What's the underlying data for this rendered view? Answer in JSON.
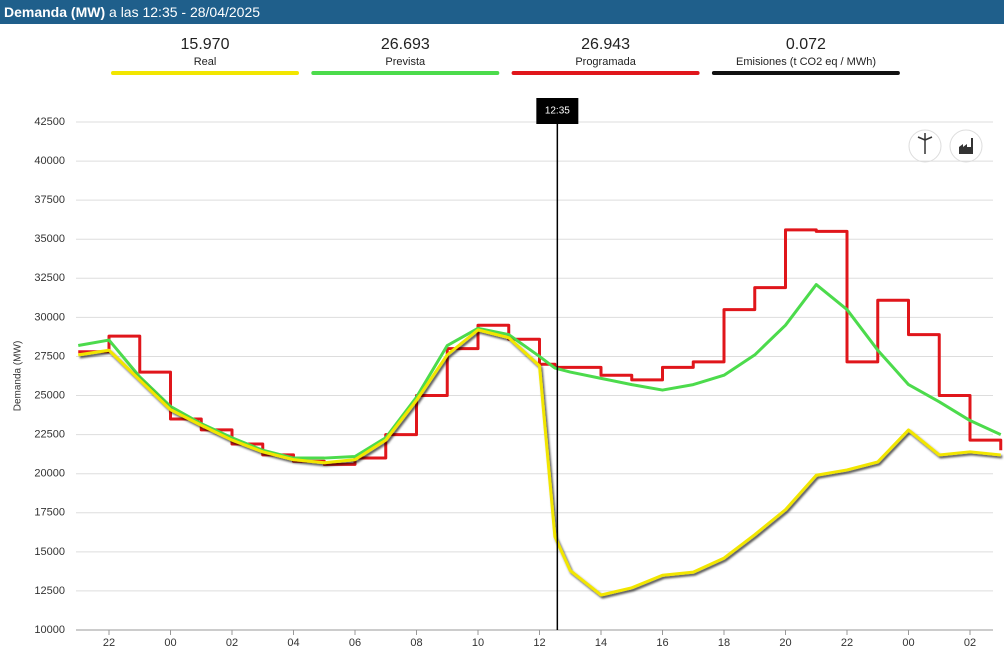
{
  "header": {
    "title": "Demanda (MW)",
    "subtitle": "a las 12:35 - 28/04/2025"
  },
  "emissions": {
    "value": "0.072",
    "label": "Emisiones (t CO2 eq / MWh)",
    "color": "#111111"
  },
  "chart_data": {
    "type": "line",
    "y_label": "Demanda (MW)",
    "x": [
      21,
      22,
      23,
      24,
      25,
      26,
      27,
      28,
      29,
      30,
      31,
      32,
      33,
      34,
      35,
      36,
      36.5,
      37,
      38,
      39,
      40,
      41,
      42,
      43,
      44,
      45,
      46,
      47,
      48,
      49,
      50,
      51
    ],
    "series": [
      {
        "name": "Real",
        "current": "15.970",
        "color": "#f2e600",
        "shadow": true,
        "values": [
          27600,
          27900,
          26000,
          24100,
          23100,
          22150,
          21400,
          20900,
          20700,
          20900,
          22150,
          24700,
          27600,
          29200,
          28700,
          26900,
          15970,
          13800,
          12240,
          12700,
          13500,
          13700,
          14600,
          16100,
          17700,
          19900,
          20240,
          20750,
          22800,
          21200,
          21400,
          21200
        ]
      },
      {
        "name": "Prevista",
        "current": "26.693",
        "color": "#4cdb4c",
        "values": [
          28200,
          28550,
          26200,
          24300,
          23200,
          22300,
          21500,
          21000,
          21000,
          21100,
          22300,
          24900,
          28200,
          29300,
          28900,
          27500,
          26760,
          26500,
          26100,
          25700,
          25350,
          25700,
          26300,
          27600,
          29500,
          32100,
          30500,
          27900,
          25700,
          24600,
          23400,
          22500
        ]
      },
      {
        "name": "Programada",
        "current": "26.943",
        "color": "#e0161b",
        "step": true,
        "values": [
          27800,
          28800,
          26500,
          23500,
          22800,
          21900,
          21200,
          20800,
          20600,
          21000,
          22500,
          25000,
          28000,
          29500,
          28600,
          27000,
          26800,
          26800,
          26300,
          26000,
          26800,
          27150,
          30500,
          31900,
          35600,
          35500,
          27150,
          31100,
          28900,
          25000,
          22150,
          21500
        ]
      }
    ],
    "xlim": [
      20.9,
      51
    ],
    "xticks": [
      {
        "value": 22,
        "label": "22"
      },
      {
        "value": 24,
        "label": "00"
      },
      {
        "value": 26,
        "label": "02"
      },
      {
        "value": 28,
        "label": "04"
      },
      {
        "value": 30,
        "label": "06"
      },
      {
        "value": 32,
        "label": "08"
      },
      {
        "value": 34,
        "label": "10"
      },
      {
        "value": 36,
        "label": "12"
      },
      {
        "value": 38,
        "label": "14"
      },
      {
        "value": 40,
        "label": "16"
      },
      {
        "value": 42,
        "label": "18"
      },
      {
        "value": 44,
        "label": "20"
      },
      {
        "value": 46,
        "label": "22"
      },
      {
        "value": 48,
        "label": "00"
      },
      {
        "value": 50,
        "label": "02"
      }
    ],
    "ylim": [
      10000,
      42500
    ],
    "yticks": [
      10000,
      12500,
      15000,
      17500,
      20000,
      22500,
      25000,
      27500,
      30000,
      32500,
      35000,
      37500,
      40000,
      42500
    ],
    "grid": true,
    "cursor": {
      "x": 36.58,
      "label": "12:35"
    }
  }
}
